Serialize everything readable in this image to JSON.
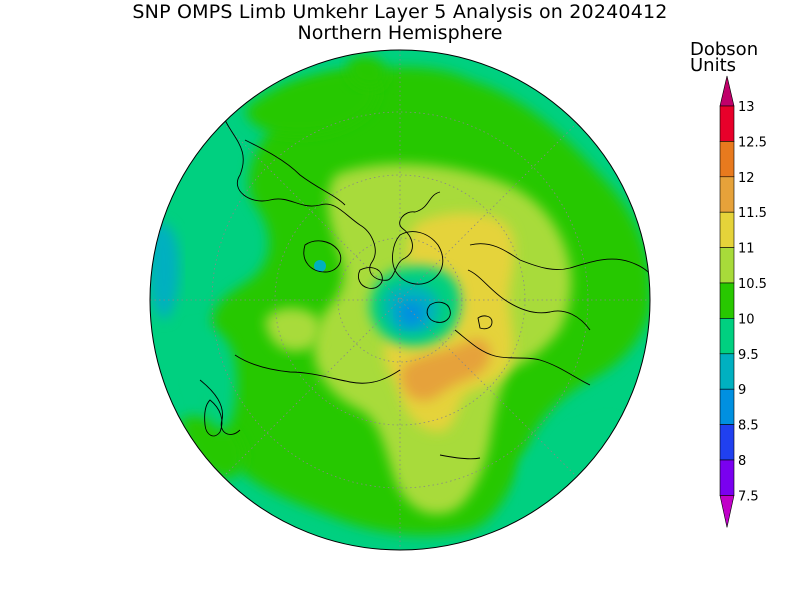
{
  "header": {
    "title": "SNP OMPS Limb Umkehr Layer 5 Analysis on 20240412",
    "subtitle": "Northern Hemisphere"
  },
  "colorbar": {
    "unit_line1": "Dobson",
    "unit_line2": "Units",
    "ticks": [
      "13",
      "12.5",
      "12",
      "11.5",
      "11",
      "10.5",
      "10",
      "9.5",
      "9",
      "8.5",
      "8",
      "7.5"
    ],
    "colors": [
      "#e8002a",
      "#e87a1e",
      "#e6a23a",
      "#e5d33a",
      "#a8db3a",
      "#28c800",
      "#00d080",
      "#00b0c0",
      "#0090e0",
      "#2040f0",
      "#7a00f0",
      "#b030e0"
    ],
    "top_arrow_color": "#c0006a",
    "bottom_arrow_color": "#c000c8"
  },
  "map": {
    "projection": "north polar stereographic",
    "field": "ozone layer 5 column",
    "background_color": "#00d080"
  }
}
